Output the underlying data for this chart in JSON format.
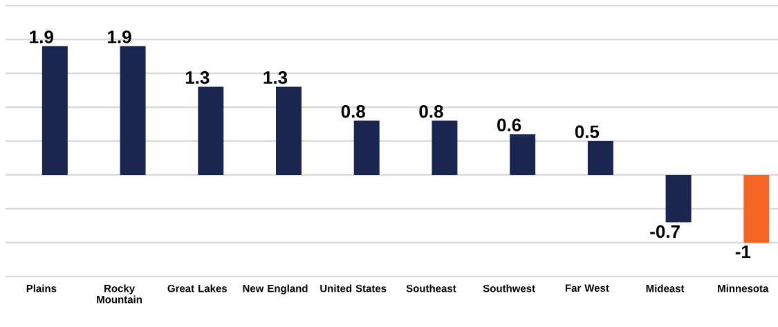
{
  "chart_data": {
    "type": "bar",
    "categories": [
      "Plains",
      "Rocky Mountain",
      "Great Lakes",
      "New England",
      "United States",
      "Southeast",
      "Southwest",
      "Far West",
      "Mideast",
      "Minnesota"
    ],
    "values": [
      1.9,
      1.9,
      1.3,
      1.3,
      0.8,
      0.8,
      0.6,
      0.5,
      -0.7,
      -1
    ],
    "colors": [
      "#1a2550",
      "#1a2550",
      "#1a2550",
      "#1a2550",
      "#1a2550",
      "#1a2550",
      "#1a2550",
      "#1a2550",
      "#1a2550",
      "#f26522"
    ],
    "ylim": [
      -1.5,
      2.5
    ],
    "yticks": [
      {
        "value": -1.5,
        "label": null
      },
      {
        "value": -1,
        "label": null
      },
      {
        "value": -0.5,
        "label": null
      },
      {
        "value": 0,
        "label": null
      },
      {
        "value": 0.5,
        "label": null
      },
      {
        "value": 1,
        "label": null
      },
      {
        "value": 1.5,
        "label": null
      },
      {
        "value": 2,
        "label": null
      },
      {
        "value": 2.5,
        "label": null
      }
    ],
    "grid": "y",
    "tick_labels": "x",
    "data_labels": true
  }
}
